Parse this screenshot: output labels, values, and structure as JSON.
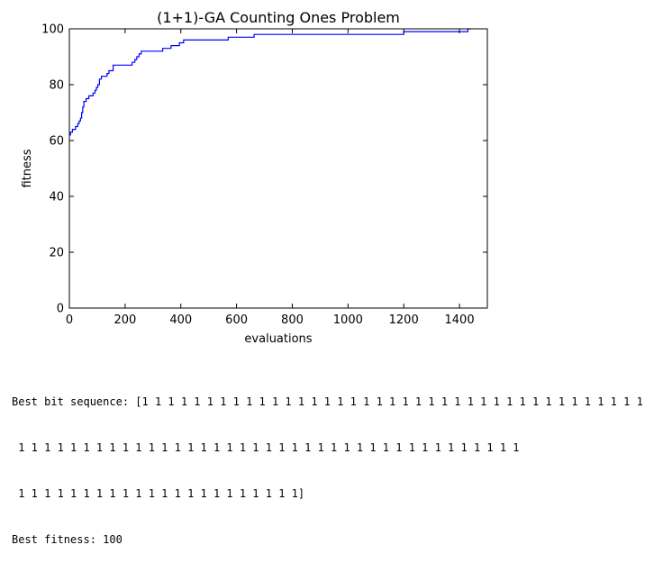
{
  "chart_data": {
    "type": "line",
    "title": "(1+1)-GA Counting Ones Problem",
    "xlabel": "evaluations",
    "ylabel": "fitness",
    "xlim": [
      0,
      1500
    ],
    "ylim": [
      0,
      100
    ],
    "xticks": [
      0,
      200,
      400,
      600,
      800,
      1000,
      1200,
      1400
    ],
    "yticks": [
      0,
      20,
      40,
      60,
      80,
      100
    ],
    "grid": false,
    "line_color": "#0000ff",
    "series": [
      {
        "x": [
          0,
          4,
          11,
          22,
          30,
          35,
          40,
          44,
          48,
          52,
          60,
          70,
          85,
          92,
          97,
          102,
          108,
          115,
          135,
          142,
          157,
          225,
          235,
          242,
          250,
          258,
          265,
          335,
          365,
          395,
          410,
          570,
          663,
          1200,
          1430,
          1440
        ],
        "y": [
          62,
          63,
          64,
          65,
          66,
          67,
          68,
          70,
          72,
          74,
          75,
          76,
          77,
          78,
          79,
          80,
          82,
          83,
          84,
          85,
          87,
          88,
          89,
          90,
          91,
          92,
          92,
          93,
          94,
          95,
          96,
          97,
          98,
          99,
          100,
          100
        ]
      }
    ]
  },
  "output": {
    "line1": "Best bit sequence: [1 1 1 1 1 1 1 1 1 1 1 1 1 1 1 1 1 1 1 1 1 1 1 1 1 1 1 1 1 1 1 1 1 1 1 1 1 1 1",
    "line2": " 1 1 1 1 1 1 1 1 1 1 1 1 1 1 1 1 1 1 1 1 1 1 1 1 1 1 1 1 1 1 1 1 1 1 1 1 1 1 1",
    "line3": " 1 1 1 1 1 1 1 1 1 1 1 1 1 1 1 1 1 1 1 1 1 1]",
    "line4": "Best fitness: 100"
  }
}
